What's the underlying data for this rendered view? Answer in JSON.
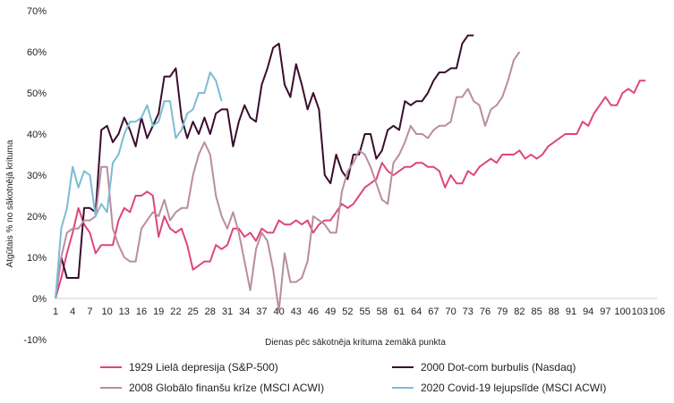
{
  "chart_data": {
    "type": "line",
    "title": "",
    "xlabel": "Dienas pēc sākotnēja krituma zemākā punkta",
    "ylabel": "Atgūtais % no sākotnējā krituma",
    "ylim": [
      -10,
      70
    ],
    "y_ticks": [
      "-10%",
      "0%",
      "10%",
      "20%",
      "30%",
      "40%",
      "50%",
      "60%",
      "70%"
    ],
    "x_ticks": [
      "1",
      "4",
      "7",
      "10",
      "13",
      "16",
      "19",
      "22",
      "25",
      "28",
      "31",
      "34",
      "37",
      "40",
      "43",
      "46",
      "49",
      "52",
      "55",
      "58",
      "61",
      "64",
      "67",
      "70",
      "73",
      "76",
      "79",
      "82",
      "85",
      "88",
      "91",
      "94",
      "97",
      "100",
      "103",
      "106"
    ],
    "xlim": [
      1,
      106
    ],
    "grid": false,
    "legend_position": "bottom",
    "series": [
      {
        "name": "1929 Lielā depresija (S&P-500)",
        "color": "#e0457b",
        "values": [
          0,
          5,
          11,
          16,
          22,
          18,
          16,
          11,
          13,
          13,
          13,
          19,
          22,
          21,
          25,
          25,
          26,
          25,
          15,
          20,
          17,
          16,
          17,
          13,
          7,
          8,
          9,
          9,
          13,
          12,
          13,
          17,
          17,
          15,
          16,
          14,
          17,
          16,
          16,
          19,
          18,
          18,
          19,
          18,
          19,
          16,
          18,
          19,
          19,
          21,
          23,
          22,
          23,
          25,
          27,
          28,
          29,
          33,
          31,
          30,
          31,
          32,
          32,
          33,
          33,
          32,
          32,
          31,
          27,
          30,
          28,
          28,
          31,
          30,
          32,
          33,
          34,
          33,
          35,
          35,
          35,
          36,
          34,
          35,
          34,
          35,
          37,
          38,
          39,
          40,
          40,
          40,
          43,
          42,
          45,
          47,
          49,
          47,
          47,
          50,
          51,
          50,
          53,
          53
        ]
      },
      {
        "name": "2000 Dot-com burbulis (Nasdaq)",
        "color": "#3a0d2e",
        "values": [
          0,
          10,
          5,
          5,
          5,
          22,
          22,
          21,
          41,
          42,
          38,
          40,
          44,
          41,
          37,
          44,
          39,
          42,
          45,
          54,
          54,
          56,
          44,
          39,
          43,
          40,
          44,
          40,
          45,
          46,
          46,
          37,
          43,
          47,
          44,
          43,
          52,
          56,
          61,
          62,
          52,
          49,
          57,
          52,
          46,
          50,
          46,
          30,
          28,
          35,
          31,
          29,
          35,
          35,
          40,
          40,
          34,
          36,
          41,
          42,
          41,
          48,
          47,
          48,
          48,
          50,
          53,
          55,
          55,
          56,
          56,
          62,
          64,
          64
        ]
      },
      {
        "name": "2008 Globālo finanšu krīze (MSCI ACWI)",
        "color": "#b98da0",
        "values": [
          0,
          10,
          16,
          17,
          17,
          19,
          19,
          20,
          32,
          32,
          17,
          13,
          10,
          9,
          9,
          17,
          19,
          21,
          20,
          24,
          19,
          21,
          22,
          22,
          30,
          35,
          38,
          35,
          25,
          20,
          17,
          21,
          16,
          9,
          2,
          12,
          16,
          14,
          7,
          -3,
          11,
          4,
          4,
          5,
          9,
          20,
          19,
          18,
          16,
          16,
          26,
          31,
          33,
          36,
          35,
          32,
          28,
          24,
          23,
          33,
          35,
          38,
          42,
          40,
          40,
          39,
          41,
          42,
          42,
          43,
          49,
          49,
          51,
          48,
          47,
          42,
          46,
          47,
          49,
          53,
          58,
          60
        ]
      },
      {
        "name": "2020 Covid-19 lejupslīde (MSCI ACWI)",
        "color": "#7dbcd4",
        "values": [
          0,
          17,
          22,
          32,
          27,
          31,
          30,
          20,
          23,
          21,
          33,
          35,
          40,
          43,
          43,
          44,
          47,
          42,
          43,
          48,
          48,
          39,
          41,
          45,
          46,
          50,
          50,
          55,
          53,
          48
        ]
      }
    ]
  }
}
